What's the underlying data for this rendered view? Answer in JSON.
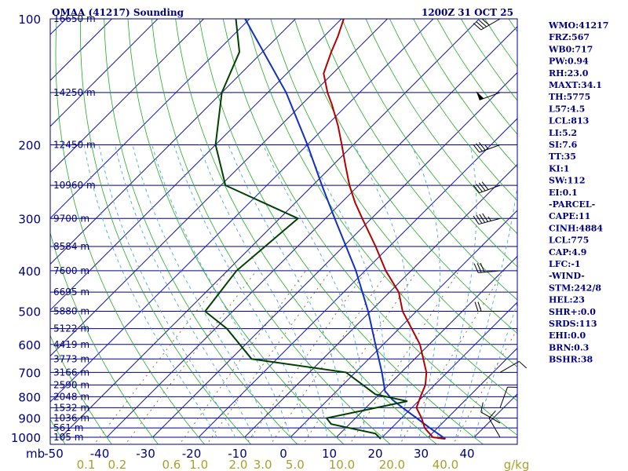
{
  "header": {
    "title_left": "OMAA (41217) Sounding",
    "title_right": "1200Z 31 OCT 25"
  },
  "indices": [
    "WMO:41217",
    "FRZ:567",
    "WB0:717",
    "PW:0.94",
    "RH:23.0",
    "MAXT:34.1",
    "TH:5775",
    "L57:4.5",
    "LCL:813",
    "LI:5.2",
    "SI:7.6",
    "TT:35",
    "KI:1",
    "SW:112",
    "EI:0.1",
    "-PARCEL-",
    "CAPE:11",
    "CINH:4884",
    "LCL:775",
    "CAP:4.9",
    "LFC:-1",
    "-WIND-",
    "STM:242/8",
    "HEL:23",
    "SHR+:0.0",
    "SRDS:113",
    "EHI:0.0",
    "BRN:0.3",
    "BSHR:38"
  ],
  "colors": {
    "frame": "#000080",
    "isobar": "#000080",
    "isotherm": "#1a1aa8",
    "dry_adiabat": "#22aa22",
    "moist_adiabat": "#4fa6d6",
    "mixing_ratio": "#7a6a2a",
    "temperature": "#b30000",
    "dewpoint": "#004000",
    "parcel": "#1030c0",
    "wind": "#000000",
    "mixing_label": "#aa9f2a"
  },
  "chart_data": {
    "type": "skew-t",
    "title": "OMAA (41217) Sounding",
    "axis_corner_label": "mb",
    "pressure_levels": [
      100,
      200,
      300,
      400,
      500,
      600,
      700,
      800,
      900,
      1000
    ],
    "temperature_ticks": [
      -50,
      -40,
      -30,
      -20,
      -10,
      0,
      10,
      20,
      30,
      40
    ],
    "mixing_ratio_ticks": [
      "0.1",
      "0.2",
      "0.6",
      "1.0",
      "2.0",
      "3.0",
      "5.0",
      "10.0",
      "20.0",
      "40.0"
    ],
    "mixing_ratio_unit": "g/kg",
    "height_labels": [
      {
        "p": 100,
        "label": "16650 m"
      },
      {
        "p": 150,
        "label": "14250 m"
      },
      {
        "p": 200,
        "label": "12450 m"
      },
      {
        "p": 250,
        "label": "10960 m"
      },
      {
        "p": 300,
        "label": "9700 m"
      },
      {
        "p": 350,
        "label": "8584 m"
      },
      {
        "p": 400,
        "label": "7600 m"
      },
      {
        "p": 450,
        "label": "6695 m"
      },
      {
        "p": 500,
        "label": "5880 m"
      },
      {
        "p": 550,
        "label": "5122 m"
      },
      {
        "p": 600,
        "label": "4419 m"
      },
      {
        "p": 650,
        "label": "3773 m"
      },
      {
        "p": 700,
        "label": "3166 m"
      },
      {
        "p": 750,
        "label": "2590 m"
      },
      {
        "p": 800,
        "label": "2048 m"
      },
      {
        "p": 850,
        "label": "1532 m"
      },
      {
        "p": 900,
        "label": "1036 m"
      },
      {
        "p": 950,
        "label": "561 m"
      },
      {
        "p": 1000,
        "label": "105 m"
      }
    ],
    "temperature_profile": [
      {
        "p": 1009,
        "t": 34.1
      },
      {
        "p": 1000,
        "t": 31.0
      },
      {
        "p": 950,
        "t": 27.2
      },
      {
        "p": 900,
        "t": 24.4
      },
      {
        "p": 850,
        "t": 21.0
      },
      {
        "p": 800,
        "t": 19.5
      },
      {
        "p": 750,
        "t": 18.0
      },
      {
        "p": 700,
        "t": 15.5
      },
      {
        "p": 600,
        "t": 8.0
      },
      {
        "p": 500,
        "t": -3.0
      },
      {
        "p": 450,
        "t": -8.0
      },
      {
        "p": 400,
        "t": -15.5
      },
      {
        "p": 350,
        "t": -23.0
      },
      {
        "p": 300,
        "t": -32.0
      },
      {
        "p": 275,
        "t": -37.0
      },
      {
        "p": 250,
        "t": -42.0
      },
      {
        "p": 225,
        "t": -47.0
      },
      {
        "p": 200,
        "t": -52.5
      },
      {
        "p": 180,
        "t": -57.5
      },
      {
        "p": 160,
        "t": -63.5
      },
      {
        "p": 150,
        "t": -67.0
      },
      {
        "p": 135,
        "t": -72.0
      },
      {
        "p": 120,
        "t": -75.0
      },
      {
        "p": 110,
        "t": -77.0
      },
      {
        "p": 100,
        "t": -79.5
      }
    ],
    "dewpoint_profile": [
      {
        "p": 1009,
        "td": 20.0
      },
      {
        "p": 980,
        "td": 17.7
      },
      {
        "p": 930,
        "td": 6.0
      },
      {
        "p": 900,
        "td": 3.7
      },
      {
        "p": 820,
        "td": 17.6
      },
      {
        "p": 790,
        "td": 9.2
      },
      {
        "p": 700,
        "td": -2.0
      },
      {
        "p": 650,
        "td": -25.5
      },
      {
        "p": 550,
        "td": -37.5
      },
      {
        "p": 500,
        "td": -46.0
      },
      {
        "p": 400,
        "td": -48.0
      },
      {
        "p": 300,
        "td": -46.0
      },
      {
        "p": 250,
        "td": -69.0
      },
      {
        "p": 200,
        "td": -80.0
      },
      {
        "p": 150,
        "td": -90.0
      },
      {
        "p": 120,
        "td": -95.0
      },
      {
        "p": 100,
        "td": -103.0
      }
    ],
    "parcel_profile": [
      {
        "p": 1009,
        "t": 34.1
      },
      {
        "p": 950,
        "t": 28.3
      },
      {
        "p": 900,
        "t": 23.3
      },
      {
        "p": 850,
        "t": 18.0
      },
      {
        "p": 813,
        "t": 14.0
      },
      {
        "p": 775,
        "t": 10.5
      },
      {
        "p": 700,
        "t": 5.8
      },
      {
        "p": 600,
        "t": -1.7
      },
      {
        "p": 500,
        "t": -10.5
      },
      {
        "p": 400,
        "t": -22.0
      },
      {
        "p": 300,
        "t": -38.0
      },
      {
        "p": 250,
        "t": -48.0
      },
      {
        "p": 200,
        "t": -60.0
      },
      {
        "p": 150,
        "t": -76.0
      },
      {
        "p": 100,
        "t": -101.0
      }
    ],
    "wind_barbs": [
      {
        "p": 1000,
        "dir": 330,
        "spd": 10
      },
      {
        "p": 925,
        "dir": 300,
        "spd": 10
      },
      {
        "p": 850,
        "dir": 20,
        "spd": 10
      },
      {
        "p": 700,
        "dir": 60,
        "spd": 10
      },
      {
        "p": 500,
        "dir": 270,
        "spd": 20
      },
      {
        "p": 400,
        "dir": 265,
        "spd": 30
      },
      {
        "p": 300,
        "dir": 255,
        "spd": 45
      },
      {
        "p": 250,
        "dir": 250,
        "spd": 40
      },
      {
        "p": 200,
        "dir": 250,
        "spd": 35
      },
      {
        "p": 150,
        "dir": 250,
        "spd": 50
      },
      {
        "p": 100,
        "dir": 240,
        "spd": 40
      }
    ]
  }
}
